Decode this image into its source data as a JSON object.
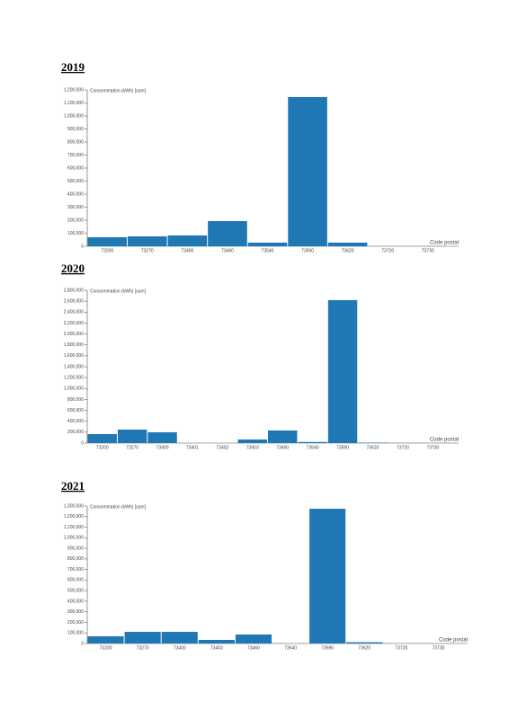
{
  "chart_data": [
    {
      "type": "bar",
      "title": "2019",
      "y_label": "Consommation (kWh) [sum]",
      "x_label": "Code postal",
      "color": "#1f77b4",
      "categories": [
        "73200",
        "73270",
        "73400",
        "73460",
        "73540",
        "73590",
        "73620",
        "73720",
        "73730"
      ],
      "values": [
        69000,
        76000,
        83000,
        193000,
        28000,
        1145000,
        28000,
        1000,
        1000
      ],
      "ylim": [
        0,
        1200000
      ],
      "yticks": [
        0,
        {
          "value": 100000,
          "label": "100,000"
        },
        {
          "value": 200000,
          "label": "200,000"
        },
        {
          "value": 300000,
          "label": "300,000"
        },
        {
          "value": 400000,
          "label": "400,000"
        },
        {
          "value": 500000,
          "label": "500,000"
        },
        {
          "value": 600000,
          "label": "600,000"
        },
        {
          "value": 700000,
          "label": "700,000"
        },
        {
          "value": 800000,
          "label": "800,000"
        },
        {
          "value": 900000,
          "label": "900,000"
        },
        {
          "value": 1000000,
          "label": "1,000,000"
        },
        {
          "value": 1100000,
          "label": "1,100,000"
        },
        {
          "value": 1200000,
          "label": "1,200,000"
        }
      ]
    },
    {
      "type": "bar",
      "title": "2020",
      "y_label": "Consommation (kWh) [sum]",
      "x_label": "Code postal",
      "color": "#1f77b4",
      "categories": [
        "73200",
        "73270",
        "73400",
        "73401",
        "73402",
        "73403",
        "73460",
        "73540",
        "73590",
        "73620",
        "73720",
        "73730"
      ],
      "values": [
        165000,
        247000,
        198000,
        0,
        0,
        66000,
        231000,
        20000,
        2620000,
        8000,
        3000,
        2000
      ],
      "ylim": [
        0,
        2800000
      ],
      "yticks": [
        0,
        {
          "value": 200000,
          "label": "200,000"
        },
        {
          "value": 400000,
          "label": "400,000"
        },
        {
          "value": 600000,
          "label": "600,000"
        },
        {
          "value": 800000,
          "label": "800,000"
        },
        {
          "value": 1000000,
          "label": "1,000,000"
        },
        {
          "value": 1200000,
          "label": "1,200,000"
        },
        {
          "value": 1400000,
          "label": "1,400,000"
        },
        {
          "value": 1600000,
          "label": "1,600,000"
        },
        {
          "value": 1800000,
          "label": "1,800,000"
        },
        {
          "value": 2000000,
          "label": "2,000,000"
        },
        {
          "value": 2200000,
          "label": "2,200,000"
        },
        {
          "value": 2400000,
          "label": "2,400,000"
        },
        {
          "value": 2600000,
          "label": "2,600,000"
        },
        {
          "value": 2800000,
          "label": "2,800,000"
        }
      ]
    },
    {
      "type": "bar",
      "title": "2021",
      "y_label": "Consommation (kWh) [sum]",
      "x_label": "Code postal",
      "color": "#1f77b4",
      "categories": [
        "73200",
        "73270",
        "73400",
        "73403",
        "73460",
        "73540",
        "73590",
        "73620",
        "73720",
        "73730"
      ],
      "values": [
        68000,
        110000,
        110000,
        34000,
        85000,
        1000,
        1274000,
        12000,
        1000,
        1000
      ],
      "ylim": [
        0,
        1300000
      ],
      "yticks": [
        0,
        {
          "value": 100000,
          "label": "100,000"
        },
        {
          "value": 200000,
          "label": "200,000"
        },
        {
          "value": 300000,
          "label": "300,000"
        },
        {
          "value": 400000,
          "label": "400,000"
        },
        {
          "value": 500000,
          "label": "500,000"
        },
        {
          "value": 600000,
          "label": "600,000"
        },
        {
          "value": 700000,
          "label": "700,000"
        },
        {
          "value": 800000,
          "label": "800,000"
        },
        {
          "value": 900000,
          "label": "900,000"
        },
        {
          "value": 1000000,
          "label": "1,000,000"
        },
        {
          "value": 1100000,
          "label": "1,100,000"
        },
        {
          "value": 1200000,
          "label": "1,200,000"
        },
        {
          "value": 1300000,
          "label": "1,300,000"
        }
      ]
    }
  ]
}
